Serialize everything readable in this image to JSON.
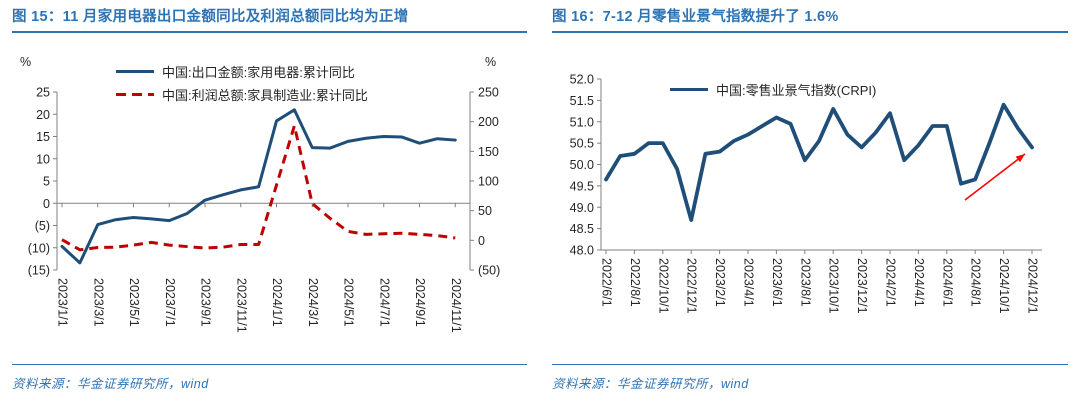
{
  "colors": {
    "accent_blue": "#2E74B5",
    "line_navy": "#1F4E79",
    "line_red": "#C00000",
    "arrow_red": "#FF0000"
  },
  "figures": [
    {
      "title": "图 15：11 月家用电器出口金额同比及利润总额同比均为正增",
      "source": "资料来源：华金证券研究所，wind",
      "chart_data": {
        "type": "line",
        "left_axis_unit": "%",
        "right_axis_unit": "%",
        "left_ylim": [
          -15,
          25
        ],
        "right_ylim": [
          -50,
          250
        ],
        "left_ticks": [
          25,
          20,
          15,
          10,
          5,
          0,
          -5,
          -10,
          -15
        ],
        "left_tick_labels": [
          "25",
          "20",
          "15",
          "10",
          "5",
          "0",
          "(5)",
          "(10)",
          "(15)"
        ],
        "right_ticks": [
          250,
          200,
          150,
          100,
          50,
          0,
          -50
        ],
        "right_tick_labels": [
          "250",
          "200",
          "150",
          "100",
          "50",
          "0",
          "(50)"
        ],
        "grid": false,
        "legend_position": "top-center",
        "categories": [
          "2023/1/1",
          "2023/2/1",
          "2023/3/1",
          "2023/4/1",
          "2023/5/1",
          "2023/6/1",
          "2023/7/1",
          "2023/8/1",
          "2023/9/1",
          "2023/10/1",
          "2023/11/1",
          "2023/12/1",
          "2024/1/1",
          "2024/2/1",
          "2024/3/1",
          "2024/4/1",
          "2024/5/1",
          "2024/6/1",
          "2024/7/1",
          "2024/8/1",
          "2024/9/1",
          "2024/10/1",
          "2024/11/1"
        ],
        "series": [
          {
            "name": "中国:出口金额:家用电器:累计同比",
            "axis": "left",
            "line_style": "solid",
            "color": "#1F4E79",
            "values": [
              -9.7,
              -13.4,
              -4.8,
              -3.7,
              -3.2,
              -3.5,
              -3.9,
              -2.3,
              0.7,
              1.9,
              3.0,
              3.7,
              18.5,
              21.0,
              12.5,
              12.4,
              13.9,
              14.6,
              15.0,
              14.9,
              13.5,
              14.5,
              14.2
            ]
          },
          {
            "name": "中国:利润总额:家具制造业:累计同比",
            "axis": "right",
            "line_style": "dashed",
            "color": "#C00000",
            "values": [
              1,
              -16,
              -12,
              -11.5,
              -8,
              -3.5,
              -8,
              -10.5,
              -13,
              -11.5,
              -7,
              -7,
              null,
              193,
              62,
              37,
              15,
              10,
              11,
              12,
              10,
              8,
              4
            ]
          }
        ]
      }
    },
    {
      "title": "图 16：7-12 月零售业景气指数提升了 1.6%",
      "source": "资料来源：华金证券研究所，wind",
      "chart_data": {
        "type": "line",
        "left_ylim": [
          48.0,
          52.0
        ],
        "left_ticks": [
          52.0,
          51.5,
          51.0,
          50.5,
          50.0,
          49.5,
          49.0,
          48.5,
          48.0
        ],
        "left_tick_labels": [
          "52.0",
          "51.5",
          "51.0",
          "50.5",
          "50.0",
          "49.5",
          "49.0",
          "48.5",
          "48.0"
        ],
        "grid": false,
        "legend_position": "top-center",
        "annotation": {
          "type": "arrow",
          "color": "#FF0000",
          "direction": "up-right",
          "target": "2024/12/1"
        },
        "categories": [
          "2022/6/1",
          "2022/7/1",
          "2022/8/1",
          "2022/9/1",
          "2022/10/1",
          "2022/11/1",
          "2022/12/1",
          "2023/1/1",
          "2023/2/1",
          "2023/3/1",
          "2023/4/1",
          "2023/5/1",
          "2023/6/1",
          "2023/7/1",
          "2023/8/1",
          "2023/9/1",
          "2023/10/1",
          "2023/11/1",
          "2023/12/1",
          "2024/1/1",
          "2024/2/1",
          "2024/3/1",
          "2024/4/1",
          "2024/5/1",
          "2024/6/1",
          "2024/7/1",
          "2024/8/1",
          "2024/9/1",
          "2024/10/1",
          "2024/11/1",
          "2024/12/1"
        ],
        "series": [
          {
            "name": "中国:零售业景气指数(CRPI)",
            "axis": "left",
            "line_style": "solid",
            "color": "#1F4E79",
            "values": [
              49.65,
              50.2,
              50.25,
              50.5,
              50.5,
              49.9,
              48.7,
              50.25,
              50.3,
              50.55,
              50.7,
              50.9,
              51.1,
              50.95,
              50.1,
              50.55,
              51.3,
              50.7,
              50.4,
              50.75,
              51.2,
              50.1,
              50.45,
              50.9,
              50.9,
              49.55,
              49.65,
              50.5,
              51.4,
              50.85,
              50.4
            ]
          }
        ]
      }
    }
  ]
}
